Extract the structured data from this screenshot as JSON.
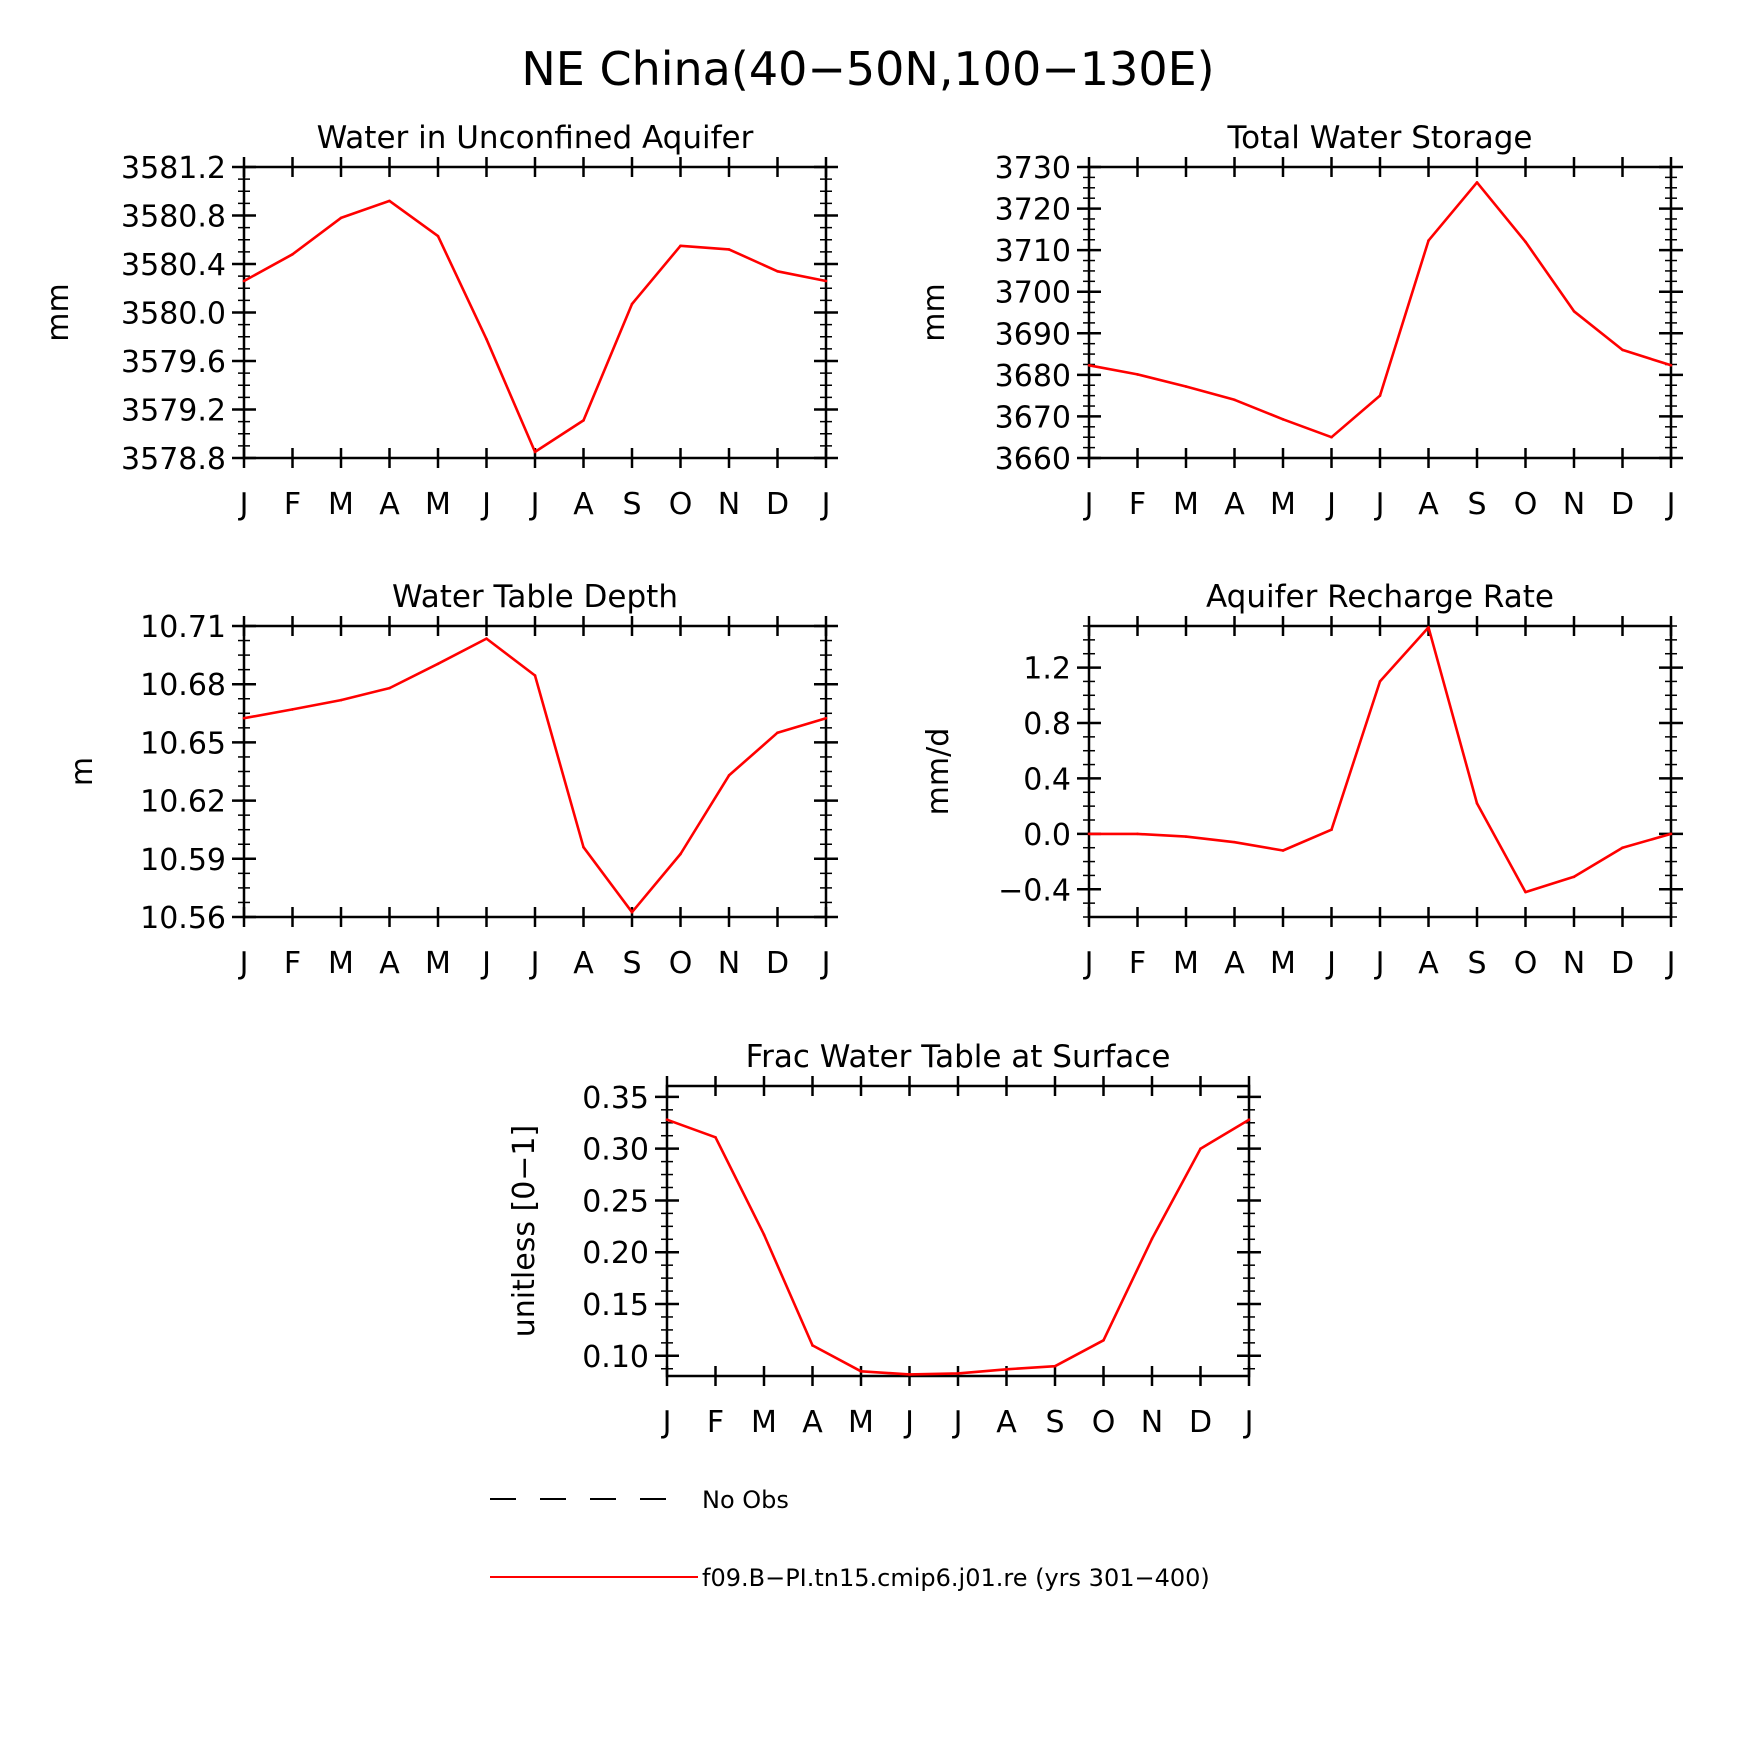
{
  "figure": {
    "title": "NE China(40−50N,100−130E)"
  },
  "legend": {
    "items": [
      {
        "label": "No Obs",
        "style": "dashed",
        "color": "#000000"
      },
      {
        "label": "f09.B−PI.tn15.cmip6.j01.re (yrs 301−400)",
        "style": "solid",
        "color": "#ff0000"
      }
    ]
  },
  "series_color": "#ff0000",
  "chart_data": [
    {
      "type": "line",
      "title": "Water in Unconfined Aquifer",
      "ylabel": "mm",
      "xlabel": "",
      "categories": [
        "J",
        "F",
        "M",
        "A",
        "M",
        "J",
        "J",
        "A",
        "S",
        "O",
        "N",
        "D",
        "J"
      ],
      "yticks": [
        "3578.8",
        "3579.2",
        "3579.6",
        "3580.0",
        "3580.4",
        "3580.8",
        "3581.2"
      ],
      "ylim": [
        3578.8,
        3581.2
      ],
      "series": [
        {
          "name": "f09.B−PI.tn15.cmip6.j01.re (yrs 301−400)",
          "values": [
            3580.26,
            3580.48,
            3580.78,
            3580.92,
            3580.63,
            3579.78,
            3578.85,
            3579.11,
            3580.07,
            3580.55,
            3580.52,
            3580.34,
            3580.26
          ]
        }
      ]
    },
    {
      "type": "line",
      "title": "Total Water Storage",
      "ylabel": "mm",
      "xlabel": "",
      "categories": [
        "J",
        "F",
        "M",
        "A",
        "M",
        "J",
        "J",
        "A",
        "S",
        "O",
        "N",
        "D",
        "J"
      ],
      "yticks": [
        "3660",
        "3670",
        "3680",
        "3690",
        "3700",
        "3710",
        "3720",
        "3730"
      ],
      "ylim": [
        3660,
        3730
      ],
      "series": [
        {
          "name": "f09.B−PI.tn15.cmip6.j01.re (yrs 301−400)",
          "values": [
            3682.3,
            3680.1,
            3677.2,
            3674.0,
            3669.3,
            3665.0,
            3675.0,
            3712.3,
            3726.3,
            3712.0,
            3695.3,
            3686.0,
            3682.3
          ]
        }
      ]
    },
    {
      "type": "line",
      "title": "Water Table Depth",
      "ylabel": "m",
      "xlabel": "",
      "categories": [
        "J",
        "F",
        "M",
        "A",
        "M",
        "J",
        "J",
        "A",
        "S",
        "O",
        "N",
        "D",
        "J"
      ],
      "yticks": [
        "10.56",
        "10.59",
        "10.62",
        "10.65",
        "10.68",
        "10.71"
      ],
      "ylim": [
        10.56,
        10.71
      ],
      "series": [
        {
          "name": "f09.B−PI.tn15.cmip6.j01.re (yrs 301−400)",
          "values": [
            10.6625,
            10.667,
            10.6718,
            10.678,
            10.6905,
            10.7035,
            10.6845,
            10.596,
            10.5625,
            10.5925,
            10.633,
            10.655,
            10.6625
          ]
        }
      ]
    },
    {
      "type": "line",
      "title": "Aquifer Recharge Rate",
      "ylabel": "mm/d",
      "xlabel": "",
      "categories": [
        "J",
        "F",
        "M",
        "A",
        "M",
        "J",
        "J",
        "A",
        "S",
        "O",
        "N",
        "D",
        "J"
      ],
      "yticks": [
        "−0.4",
        "0.0",
        "0.4",
        "0.8",
        "1.2"
      ],
      "ylim": [
        -0.6,
        1.5
      ],
      "series": [
        {
          "name": "f09.B−PI.tn15.cmip6.j01.re (yrs 301−400)",
          "values": [
            0.0,
            0.0,
            -0.02,
            -0.06,
            -0.12,
            0.03,
            1.1,
            1.49,
            0.22,
            -0.42,
            -0.31,
            -0.1,
            0.0
          ]
        }
      ]
    },
    {
      "type": "line",
      "title": "Frac Water Table at Surface",
      "ylabel": "unitless [0−1]",
      "xlabel": "",
      "categories": [
        "J",
        "F",
        "M",
        "A",
        "M",
        "J",
        "J",
        "A",
        "S",
        "O",
        "N",
        "D",
        "J"
      ],
      "yticks": [
        "0.10",
        "0.15",
        "0.20",
        "0.25",
        "0.30",
        "0.35"
      ],
      "ylim": [
        0.0805,
        0.3605
      ],
      "series": [
        {
          "name": "f09.B−PI.tn15.cmip6.j01.re (yrs 301−400)",
          "values": [
            0.328,
            0.311,
            0.217,
            0.11,
            0.085,
            0.082,
            0.083,
            0.087,
            0.09,
            0.115,
            0.213,
            0.3,
            0.328
          ]
        }
      ]
    }
  ]
}
